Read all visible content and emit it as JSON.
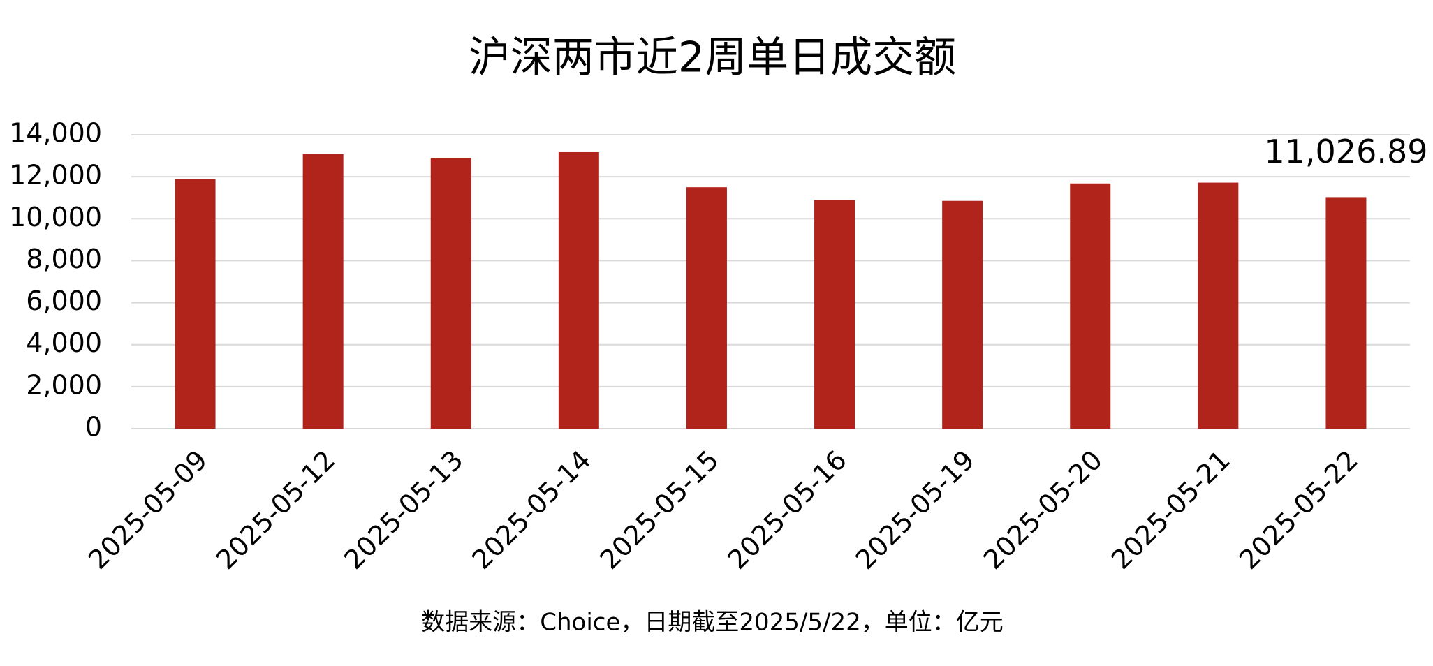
{
  "chart_data": {
    "type": "bar",
    "title": "沪深两市近2周单日成交额",
    "categories": [
      "2025-05-09",
      "2025-05-12",
      "2025-05-13",
      "2025-05-14",
      "2025-05-15",
      "2025-05-16",
      "2025-05-19",
      "2025-05-20",
      "2025-05-21",
      "2025-05-22"
    ],
    "values": [
      11900,
      13080,
      12900,
      13170,
      11500,
      10890,
      10850,
      11680,
      11720,
      11026.89
    ],
    "value_labels": [
      null,
      null,
      null,
      null,
      null,
      null,
      null,
      null,
      null,
      "11,026.89"
    ],
    "color": "#b0241b",
    "ylim": [
      0,
      14000
    ],
    "yticks": [
      0,
      {
        "value": 2000,
        "label": "2,000"
      },
      {
        "value": 4000,
        "label": "4,000"
      },
      {
        "value": 6000,
        "label": "6,000"
      },
      {
        "value": 8000,
        "label": "8,000"
      },
      {
        "value": 10000,
        "label": "10,000"
      },
      {
        "value": 12000,
        "label": "12,000"
      },
      {
        "value": 14000,
        "label": "14,000"
      }
    ],
    "grid": true,
    "source": "数据来源：Choice，日期截至2025/5/22，单位：亿元"
  }
}
